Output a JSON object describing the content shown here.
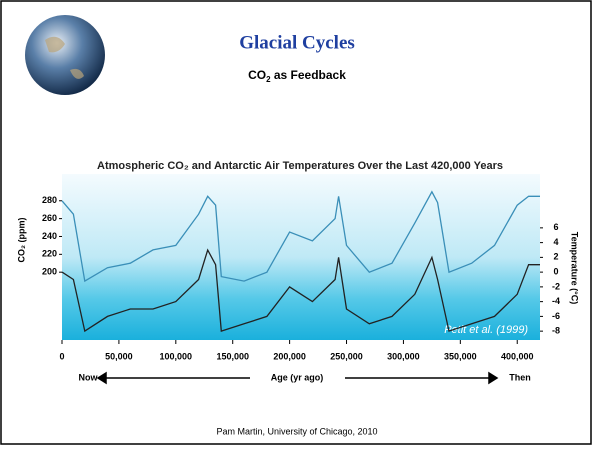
{
  "slide": {
    "title": "Glacial Cycles",
    "subtitle": {
      "main": "CO",
      "sub": "2",
      "rest": " as Feedback"
    },
    "footer": "Pam Martin, University of Chicago, 2010"
  },
  "chart_data": {
    "type": "line",
    "title": "Atmospheric CO₂ and Antarctic Air Temperatures Over the Last 420,000 Years",
    "y_label": "CO₂ (ppm)",
    "y2_label": "Temperature (°C)",
    "x_label": "Age (yr ago)",
    "x_start_label": "Now",
    "x_end_label": "Then",
    "annotation": "Petit et al. (1999)",
    "x": [
      0,
      10000,
      20000,
      40000,
      60000,
      80000,
      100000,
      120000,
      128000,
      135000,
      140000,
      160000,
      180000,
      200000,
      220000,
      240000,
      243000,
      250000,
      270000,
      290000,
      310000,
      325000,
      330000,
      340000,
      360000,
      380000,
      400000,
      410000,
      420000
    ],
    "series": [
      {
        "name": "CO₂",
        "color": "#3a8fb8",
        "values": [
          280,
          265,
          190,
          205,
          210,
          225,
          230,
          265,
          285,
          275,
          195,
          190,
          200,
          245,
          235,
          260,
          285,
          230,
          200,
          210,
          255,
          290,
          278,
          200,
          210,
          230,
          275,
          285,
          285
        ]
      },
      {
        "name": "Temperature",
        "color": "#222222",
        "axis": "y2",
        "values": [
          0,
          -1,
          -8,
          -6,
          -5,
          -5,
          -4,
          -1,
          3,
          1,
          -8,
          -7,
          -6,
          -2,
          -4,
          -1,
          2,
          -5,
          -7,
          -6,
          -3,
          2,
          -1,
          -8,
          -7,
          -6,
          -3,
          1,
          1
        ]
      }
    ],
    "xlim": [
      0,
      420000
    ],
    "xticks": [
      0,
      {
        "value": 50000,
        "label": "50,000"
      },
      {
        "value": 100000,
        "label": "100,000"
      },
      {
        "value": 150000,
        "label": "150,000"
      },
      {
        "value": 200000,
        "label": "200,000"
      },
      {
        "value": 250000,
        "label": "250,000"
      },
      {
        "value": 300000,
        "label": "300,000"
      },
      {
        "value": 350000,
        "label": "350,000"
      },
      {
        "value": 400000,
        "label": "400,000"
      }
    ],
    "ylim": [
      124,
      310
    ],
    "yticks": [
      200,
      220,
      240,
      260,
      280
    ],
    "y2lim": [
      -9.2,
      13.3
    ],
    "y2ticks": [
      -8,
      -6,
      -4,
      -2,
      0,
      2,
      4,
      6
    ]
  }
}
